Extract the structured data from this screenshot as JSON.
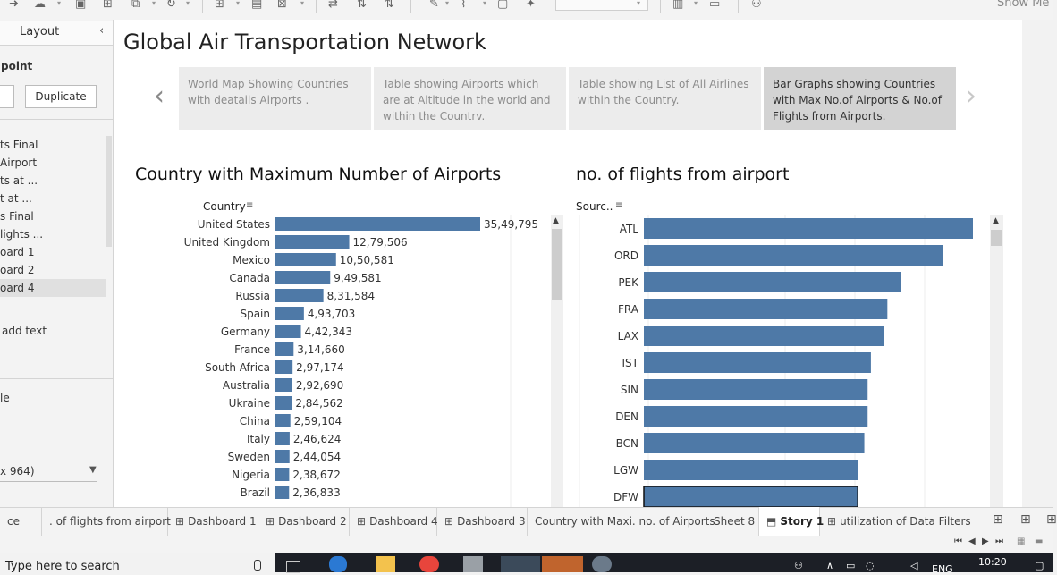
{
  "story": {
    "title": "Global Air Transportation Network",
    "points": [
      {
        "text": "World Map Showing Countries with deatails Airports ."
      },
      {
        "text": "Table showing Airports which are at Altitude in the world and within the Countrv."
      },
      {
        "text": "Table showing List of All Airlines within the Country."
      },
      {
        "text": "Bar Graphs showing Countries with Max No.of Airports & No.of Flights from Airports."
      }
    ],
    "active_point": 3
  },
  "toolbar": {
    "show_me": "Show Me"
  },
  "left_panel": {
    "layout_tab": "Layout",
    "point_label": "point",
    "duplicate_button": "Duplicate",
    "sheets": [
      "ts Final",
      "Airport",
      "ts at ...",
      "t at ...",
      "s Final",
      "lights ...",
      "oard 1",
      "oard 2",
      "oard 4"
    ],
    "active_sheet": 8,
    "add_text": "add text",
    "title_option": "le",
    "size_value": "x 964)"
  },
  "chart_data": [
    {
      "type": "bar",
      "title": "Country with Maximum Number of Airports",
      "header": "Country",
      "orientation": "horizontal",
      "categories": [
        "United States",
        "United Kingdom",
        "Mexico",
        "Canada",
        "Russia",
        "Spain",
        "Germany",
        "France",
        "South Africa",
        "Australia",
        "Ukraine",
        "China",
        "Italy",
        "Sweden",
        "Nigeria",
        "Brazil"
      ],
      "values": [
        3549795,
        1279506,
        1050581,
        949581,
        831584,
        493703,
        442343,
        314660,
        297174,
        292690,
        284562,
        259104,
        246624,
        244054,
        238672,
        236833
      ],
      "value_labels": [
        "35,49,795",
        "12,79,506",
        "10,50,581",
        "9,49,581",
        "8,31,584",
        "4,93,703",
        "4,42,343",
        "3,14,660",
        "2,97,174",
        "2,92,690",
        "2,84,562",
        "2,59,104",
        "2,46,624",
        "2,44,054",
        "2,38,672",
        "2,36,833"
      ],
      "bar_color": "#4e79a7"
    },
    {
      "type": "bar",
      "title": "no. of flights from airport",
      "header": "Sourc..",
      "orientation": "horizontal",
      "categories": [
        "ATL",
        "ORD",
        "PEK",
        "FRA",
        "LAX",
        "IST",
        "SIN",
        "DEN",
        "BCN",
        "LGW",
        "DFW"
      ],
      "values": [
        100,
        91,
        78,
        74,
        73,
        69,
        68,
        68,
        67,
        65,
        65
      ],
      "value_labels": [],
      "bar_color": "#4e79a7",
      "selected_category": "DFW"
    }
  ],
  "bottom_tabs": [
    {
      "label": "ce",
      "icon": ""
    },
    {
      "label": ". of flights from airport",
      "icon": ""
    },
    {
      "label": "Dashboard 1",
      "icon": "⊞"
    },
    {
      "label": "Dashboard 2",
      "icon": "⊞"
    },
    {
      "label": "Dashboard 4",
      "icon": "⊞"
    },
    {
      "label": "Dashboard 3",
      "icon": "⊞"
    },
    {
      "label": "Country with Maxi. no. of Airports",
      "icon": ""
    },
    {
      "label": "Sheet 8",
      "icon": ""
    },
    {
      "label": "Story 1",
      "icon": "⬒"
    },
    {
      "label": "utilization of Data Filters",
      "icon": "⊞"
    }
  ],
  "active_tab": 8,
  "taskbar": {
    "search_placeholder": "Type here to search",
    "clock": "10:20",
    "language": "ENG"
  }
}
